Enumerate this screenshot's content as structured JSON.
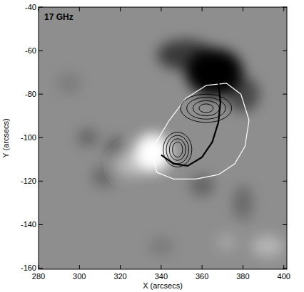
{
  "chart_data": {
    "type": "contour_map",
    "title": "17 GHz",
    "x_label": "X (arcsecs)",
    "y_label": "Y (arcsecs)",
    "xlim": [
      280,
      401.5
    ],
    "ylim": [
      -160.5,
      -40
    ],
    "xticks": [
      280,
      300,
      320,
      340,
      360,
      380,
      400
    ],
    "yticks": [
      -160,
      -140,
      -120,
      -100,
      -80,
      -60,
      -40
    ],
    "magnetogram": [
      {
        "x": 366,
        "y": -70,
        "rx": 14,
        "ry": 11,
        "level": -1
      },
      {
        "x": 352,
        "y": -62,
        "rx": 14,
        "ry": 7,
        "level": -0.6
      },
      {
        "x": 380,
        "y": -80,
        "rx": 8,
        "ry": 8,
        "level": -0.5
      },
      {
        "x": 336,
        "y": -107,
        "rx": 9,
        "ry": 9,
        "level": 1
      },
      {
        "x": 326,
        "y": -112,
        "rx": 8,
        "ry": 6,
        "level": 0.4
      },
      {
        "x": 318,
        "y": -105,
        "rx": 5,
        "ry": 5,
        "level": -0.35
      },
      {
        "x": 304,
        "y": -100,
        "rx": 5,
        "ry": 4,
        "level": -0.3
      },
      {
        "x": 312,
        "y": -118,
        "rx": 6,
        "ry": 5,
        "level": -0.25
      },
      {
        "x": 360,
        "y": -122,
        "rx": 6,
        "ry": 5,
        "level": -0.3
      },
      {
        "x": 380,
        "y": -130,
        "rx": 5,
        "ry": 8,
        "level": -0.25
      },
      {
        "x": 392,
        "y": -150,
        "rx": 8,
        "ry": 5,
        "level": 0.35
      },
      {
        "x": 372,
        "y": -148,
        "rx": 5,
        "ry": 4,
        "level": 0.2
      },
      {
        "x": 340,
        "y": -150,
        "rx": 6,
        "ry": 4,
        "level": -0.15
      },
      {
        "x": 295,
        "y": -75,
        "rx": 6,
        "ry": 5,
        "level": -0.12
      }
    ],
    "contours": [
      {
        "x": 348,
        "y": -105.5,
        "rx": [
          2.5,
          4,
          5.5,
          7
        ],
        "ry": [
          3.5,
          5,
          6.5,
          8
        ]
      },
      {
        "x": 362,
        "y": -86.5,
        "rx": [
          3.5,
          6.5,
          9.5,
          12.5
        ],
        "ry": [
          2,
          3.5,
          5,
          6.5
        ]
      }
    ],
    "outline": {
      "x": [
        337,
        344,
        352,
        362,
        372,
        379,
        383,
        381,
        376,
        368,
        357,
        346,
        338,
        336,
        337
      ],
      "y": [
        -103,
        -92,
        -82,
        -76,
        -75,
        -80,
        -92,
        -104,
        -112,
        -117,
        -119,
        -119,
        -116,
        -110,
        -103
      ]
    },
    "arc": {
      "x": [
        340,
        346,
        353,
        360,
        365,
        368,
        369,
        368
      ],
      "y": [
        -108,
        -112,
        -113,
        -109,
        -102,
        -93,
        -84,
        -74
      ]
    }
  }
}
